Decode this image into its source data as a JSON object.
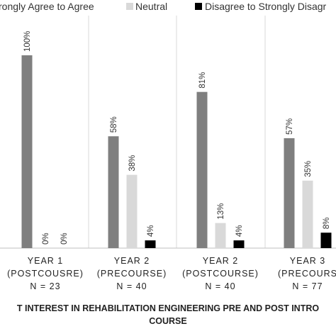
{
  "chart_data": {
    "type": "bar",
    "legend_position": "top",
    "grid": false,
    "ylim": [
      0,
      100
    ],
    "xlabel_lines": [
      "T INTEREST IN REHABILITATION ENGINEERING PRE AND POST INTRO",
      "COURSE"
    ],
    "categories": [
      [
        "YEAR 1",
        "(POSTCOUSRE)",
        "N = 23"
      ],
      [
        "YEAR 2",
        "(PRECOURSE)",
        "N = 40"
      ],
      [
        "YEAR 2",
        "(POSTCOURSE)",
        "N = 40"
      ],
      [
        "YEAR 3",
        "(PRECOURS",
        "N = 77"
      ]
    ],
    "series": [
      {
        "name": "rongly Agree to Agree",
        "color": "#7f7f7f",
        "values": [
          100,
          58,
          81,
          57
        ],
        "labels": [
          "100%",
          "58%",
          "81%",
          "57%"
        ]
      },
      {
        "name": "Neutral",
        "color": "#d9d9d9",
        "values": [
          0,
          38,
          13,
          35
        ],
        "labels": [
          "0%",
          "38%",
          "13%",
          "35%"
        ]
      },
      {
        "name": "Disagree to Strongly Disagr",
        "color": "#000000",
        "values": [
          0,
          4,
          4,
          8
        ],
        "labels": [
          "0%",
          "4%",
          "4%",
          "8%"
        ]
      }
    ]
  }
}
